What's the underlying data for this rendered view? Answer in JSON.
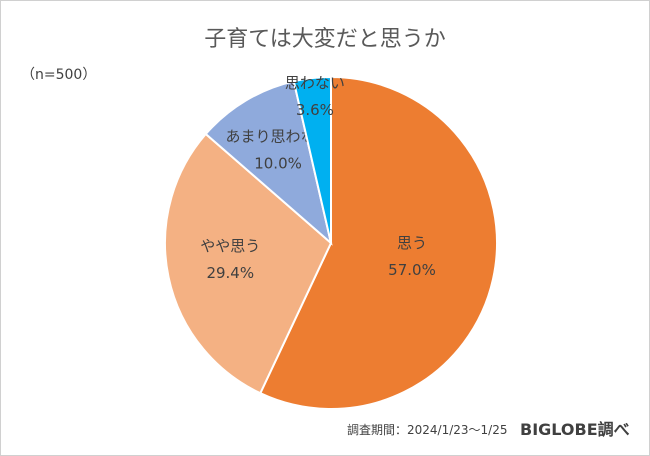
{
  "chart_data": {
    "type": "pie",
    "title": "子育ては大変だと思うか",
    "note": "（n=500）",
    "slices": [
      {
        "label": "思う",
        "value": 57.0,
        "value_label": "57.0%",
        "color": "#ED7D31"
      },
      {
        "label": "やや思う",
        "value": 29.4,
        "value_label": "29.4%",
        "color": "#F4B183"
      },
      {
        "label": "あまり思わない",
        "value": 10.0,
        "value_label": "10.0%",
        "color": "#8FAADC"
      },
      {
        "label": "思わない",
        "value": 3.6,
        "value_label": "3.6%",
        "color": "#00B0F0"
      }
    ],
    "legend": "none",
    "start_angle": "12 o'clock",
    "direction": "clockwise"
  },
  "footer": {
    "survey_period": "調査期間：2024/1/23～1/25",
    "brand": "BIGLOBE調べ"
  }
}
